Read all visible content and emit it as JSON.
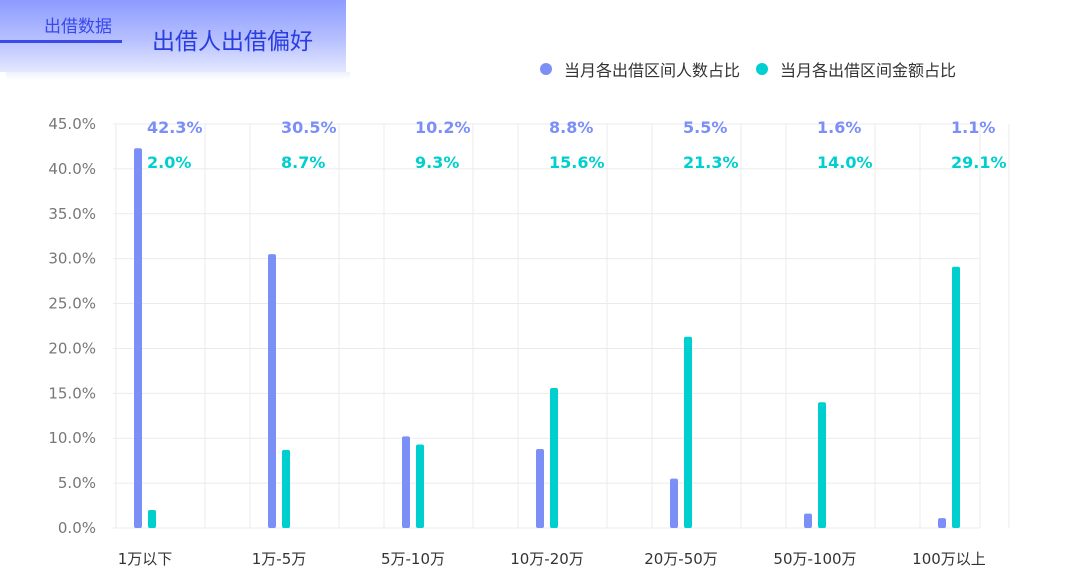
{
  "header": {
    "tab_label": "出借数据",
    "title": "出借人出借偏好"
  },
  "colors": {
    "series_people": "#7b8ff7",
    "series_amount": "#00cfcf",
    "grid": "#ebebeb",
    "axis_text": "#777777"
  },
  "chart_data": {
    "type": "bar",
    "categories": [
      "1万以下",
      "1万-5万",
      "5万-10万",
      "10万-20万",
      "20万-50万",
      "50万-100万",
      "100万以上"
    ],
    "series": [
      {
        "name": "当月各出借区间人数占比",
        "values": [
          42.3,
          30.5,
          10.2,
          8.8,
          5.5,
          1.6,
          1.1
        ],
        "labels": [
          "42.3%",
          "30.5%",
          "10.2%",
          "8.8%",
          "5.5%",
          "1.6%",
          "1.1%"
        ]
      },
      {
        "name": "当月各出借区间金额占比",
        "values": [
          2.0,
          8.7,
          9.3,
          15.6,
          21.3,
          14.0,
          29.1
        ],
        "labels": [
          "2.0%",
          "8.7%",
          "9.3%",
          "15.6%",
          "21.3%",
          "14.0%",
          "29.1%"
        ]
      }
    ],
    "y_ticks": [
      "0.0%",
      "5.0%",
      "10.0%",
      "15.0%",
      "20.0%",
      "25.0%",
      "30.0%",
      "35.0%",
      "40.0%",
      "45.0%"
    ],
    "ylim": [
      0,
      45
    ],
    "grid": true,
    "legend_position": "top-right"
  }
}
